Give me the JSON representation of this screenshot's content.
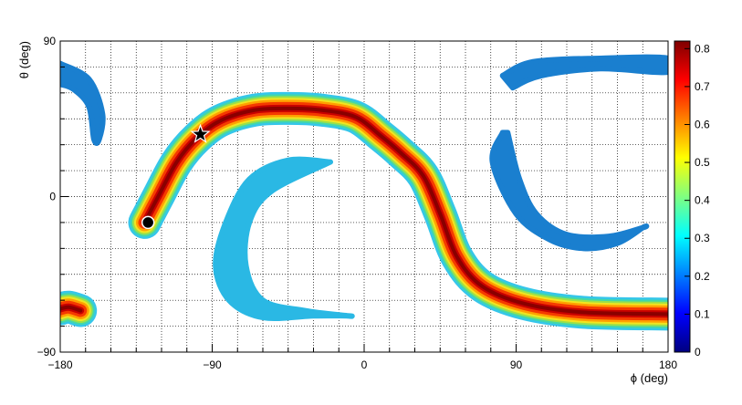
{
  "chart_data": {
    "type": "heatmap",
    "xlabel": "ϕ (deg)",
    "ylabel": "θ (deg)",
    "xlim": [
      -180,
      180
    ],
    "ylim": [
      -90,
      90
    ],
    "x_ticks": [
      -180,
      -90,
      0,
      90,
      180
    ],
    "x_tick_labels": [
      "−180",
      "−90",
      "0",
      "90",
      "180"
    ],
    "y_ticks": [
      -90,
      0,
      90
    ],
    "y_tick_labels": [
      "−90",
      "0",
      "90"
    ],
    "grid": true,
    "colorbar": {
      "range": [
        0,
        0.82
      ],
      "ticks": [
        0,
        0.1,
        0.2,
        0.3,
        0.4,
        0.5,
        0.6,
        0.7,
        0.8
      ],
      "tick_labels": [
        "0",
        "0.1",
        "0.2",
        "0.3",
        "0.4",
        "0.5",
        "0.6",
        "0.7",
        "0.8"
      ],
      "colormap": [
        "#00007f",
        "#0000ff",
        "#0080ff",
        "#00ffff",
        "#80ff80",
        "#ffff00",
        "#ff8000",
        "#ff0000",
        "#7f0000"
      ]
    },
    "bands": [
      {
        "name": "main",
        "value": 0.8,
        "halo_color": "#35c6ea",
        "center": [
          [
            -130,
            -15
          ],
          [
            -122,
            0
          ],
          [
            -111,
            20
          ],
          [
            -99,
            34
          ],
          [
            -85,
            44
          ],
          [
            -65,
            50
          ],
          [
            -45,
            51
          ],
          [
            -25,
            50
          ],
          [
            -5,
            46
          ],
          [
            10,
            35
          ],
          [
            22,
            25
          ],
          [
            35,
            12
          ],
          [
            45,
            -10
          ],
          [
            55,
            -35
          ],
          [
            70,
            -52
          ],
          [
            95,
            -62
          ],
          [
            130,
            -67
          ],
          [
            180,
            -68
          ]
        ]
      },
      {
        "name": "wrap-left",
        "value": 0.8,
        "halo_color": "#35c6ea",
        "center": [
          [
            -180,
            -65
          ],
          [
            -175,
            -64
          ],
          [
            -168,
            -66
          ]
        ]
      }
    ],
    "arcs": [
      {
        "name": "left-crescent",
        "value": 0.3,
        "color": "#2ab8e4",
        "outer": [
          [
            -20,
            20
          ],
          [
            -45,
            21
          ],
          [
            -68,
            10
          ],
          [
            -82,
            -15
          ],
          [
            -88,
            -40
          ],
          [
            -80,
            -60
          ],
          [
            -60,
            -70
          ],
          [
            -30,
            -69
          ],
          [
            -10,
            -69
          ]
        ],
        "inner": [
          [
            -10,
            -69
          ],
          [
            -35,
            -66
          ],
          [
            -60,
            -60
          ],
          [
            -70,
            -40
          ],
          [
            -68,
            -15
          ],
          [
            -55,
            3
          ],
          [
            -20,
            20
          ]
        ]
      },
      {
        "name": "right-crescent",
        "value": 0.2,
        "color": "#1a7fcf",
        "outer": [
          [
            82,
            37
          ],
          [
            76,
            20
          ],
          [
            90,
            -10
          ],
          [
            110,
            -25
          ],
          [
            130,
            -30
          ],
          [
            150,
            -27
          ],
          [
            165,
            -18
          ]
        ],
        "inner": [
          [
            165,
            -18
          ],
          [
            145,
            -23
          ],
          [
            120,
            -22
          ],
          [
            102,
            -10
          ],
          [
            92,
            10
          ],
          [
            85,
            37
          ]
        ]
      },
      {
        "name": "top-right-arc",
        "value": 0.2,
        "color": "#1a7fcf",
        "outer": [
          [
            82,
            70
          ],
          [
            100,
            78
          ],
          [
            140,
            80
          ],
          [
            180,
            80
          ]
        ],
        "inner": [
          [
            180,
            72
          ],
          [
            140,
            74
          ],
          [
            105,
            70
          ],
          [
            88,
            63
          ]
        ]
      },
      {
        "name": "top-left-arc",
        "value": 0.2,
        "color": "#1a7fcf",
        "outer": [
          [
            -180,
            77
          ],
          [
            -163,
            68
          ],
          [
            -155,
            48
          ],
          [
            -157,
            33
          ]
        ],
        "inner": [
          [
            -160,
            33
          ],
          [
            -163,
            52
          ],
          [
            -172,
            62
          ],
          [
            -180,
            65
          ]
        ]
      }
    ],
    "markers": [
      {
        "name": "star",
        "x": -97,
        "y": 36
      },
      {
        "name": "circle",
        "x": -128,
        "y": -15
      }
    ]
  }
}
